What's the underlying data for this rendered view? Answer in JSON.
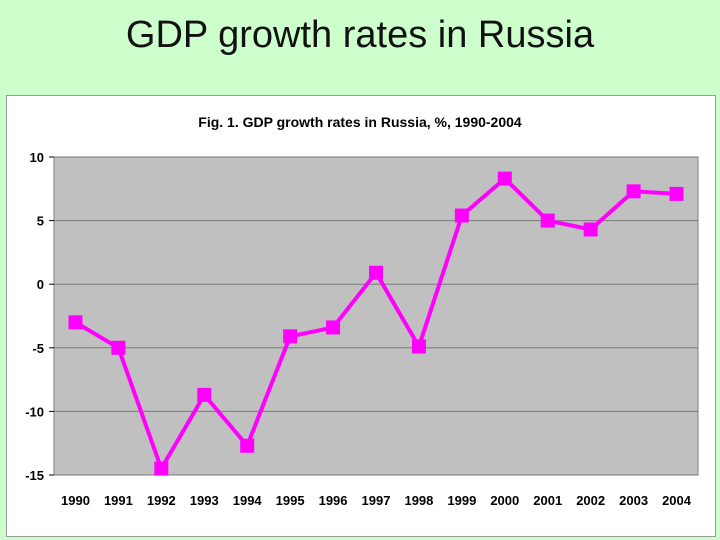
{
  "slide": {
    "title": "GDP growth rates in Russia"
  },
  "colors": {
    "background": "#ccffcc",
    "plot_area": "#c0c0c0",
    "series": "#ff00ff"
  },
  "chart_data": {
    "type": "line",
    "title": "Fig. 1. GDP growth rates in Russia, %, 1990-2004",
    "xlabel": "",
    "ylabel": "",
    "categories": [
      "1990",
      "1991",
      "1992",
      "1993",
      "1994",
      "1995",
      "1996",
      "1997",
      "1998",
      "1999",
      "2000",
      "2001",
      "2002",
      "2003",
      "2004"
    ],
    "series": [
      {
        "name": "GDP growth, %",
        "values": [
          -3.0,
          -5.0,
          -14.5,
          -8.7,
          -12.7,
          -4.1,
          -3.4,
          0.9,
          -4.9,
          5.4,
          8.3,
          5.0,
          4.3,
          7.3,
          7.1
        ]
      }
    ],
    "ylim": [
      -15,
      10
    ],
    "yticks": [
      10,
      5,
      0,
      -5,
      -10,
      -15
    ],
    "ytick_labels": [
      "10",
      "5",
      "0",
      "-5",
      "-10",
      "-15"
    ],
    "grid": true,
    "marker": "square"
  }
}
